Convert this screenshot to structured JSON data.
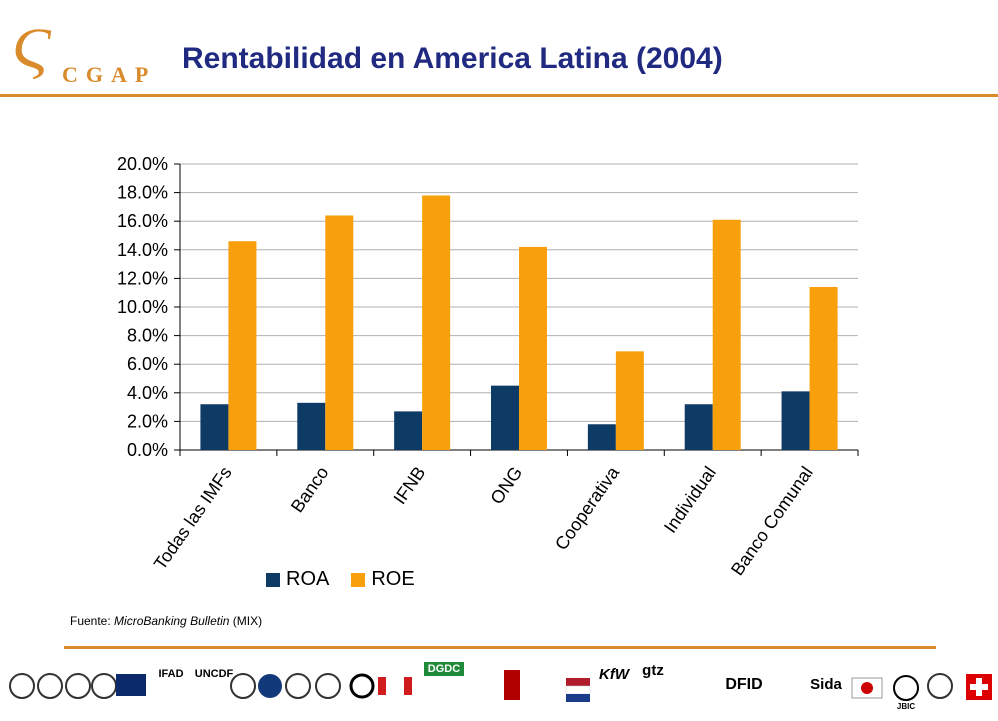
{
  "header": {
    "logo_text": "CGAP",
    "title": "Rentabilidad en America Latina  (2004)"
  },
  "chart_data": {
    "type": "bar",
    "categories": [
      "Todas las IMFs",
      "Banco",
      "IFNB",
      "ONG",
      "Cooperativa",
      "Individual",
      "Banco Comunal"
    ],
    "series": [
      {
        "name": "ROA",
        "color": "#0e3a66",
        "values": [
          3.2,
          3.3,
          2.7,
          4.5,
          1.8,
          3.2,
          4.1
        ]
      },
      {
        "name": "ROE",
        "color": "#f7a00c",
        "values": [
          14.6,
          16.4,
          17.8,
          14.2,
          6.9,
          16.1,
          11.4
        ]
      }
    ],
    "ylim": [
      0,
      20
    ],
    "yticks": [
      "0.0%",
      "2.0%",
      "4.0%",
      "6.0%",
      "8.0%",
      "10.0%",
      "12.0%",
      "14.0%",
      "16.0%",
      "18.0%",
      "20.0%"
    ],
    "grid": true,
    "legend_position": "bottom",
    "xlabel": "",
    "ylabel": ""
  },
  "legend": {
    "roa": "ROA",
    "roe": "ROE"
  },
  "source": {
    "prefix": "Fuente: ",
    "publication": "MicroBanking Bulletin",
    "suffix": " (MIX)"
  },
  "footer_logos": [
    "DGDC",
    "IFAD",
    "UNCDF",
    "KfW",
    "gtz",
    "DFID",
    "Sida",
    "JBIC"
  ]
}
